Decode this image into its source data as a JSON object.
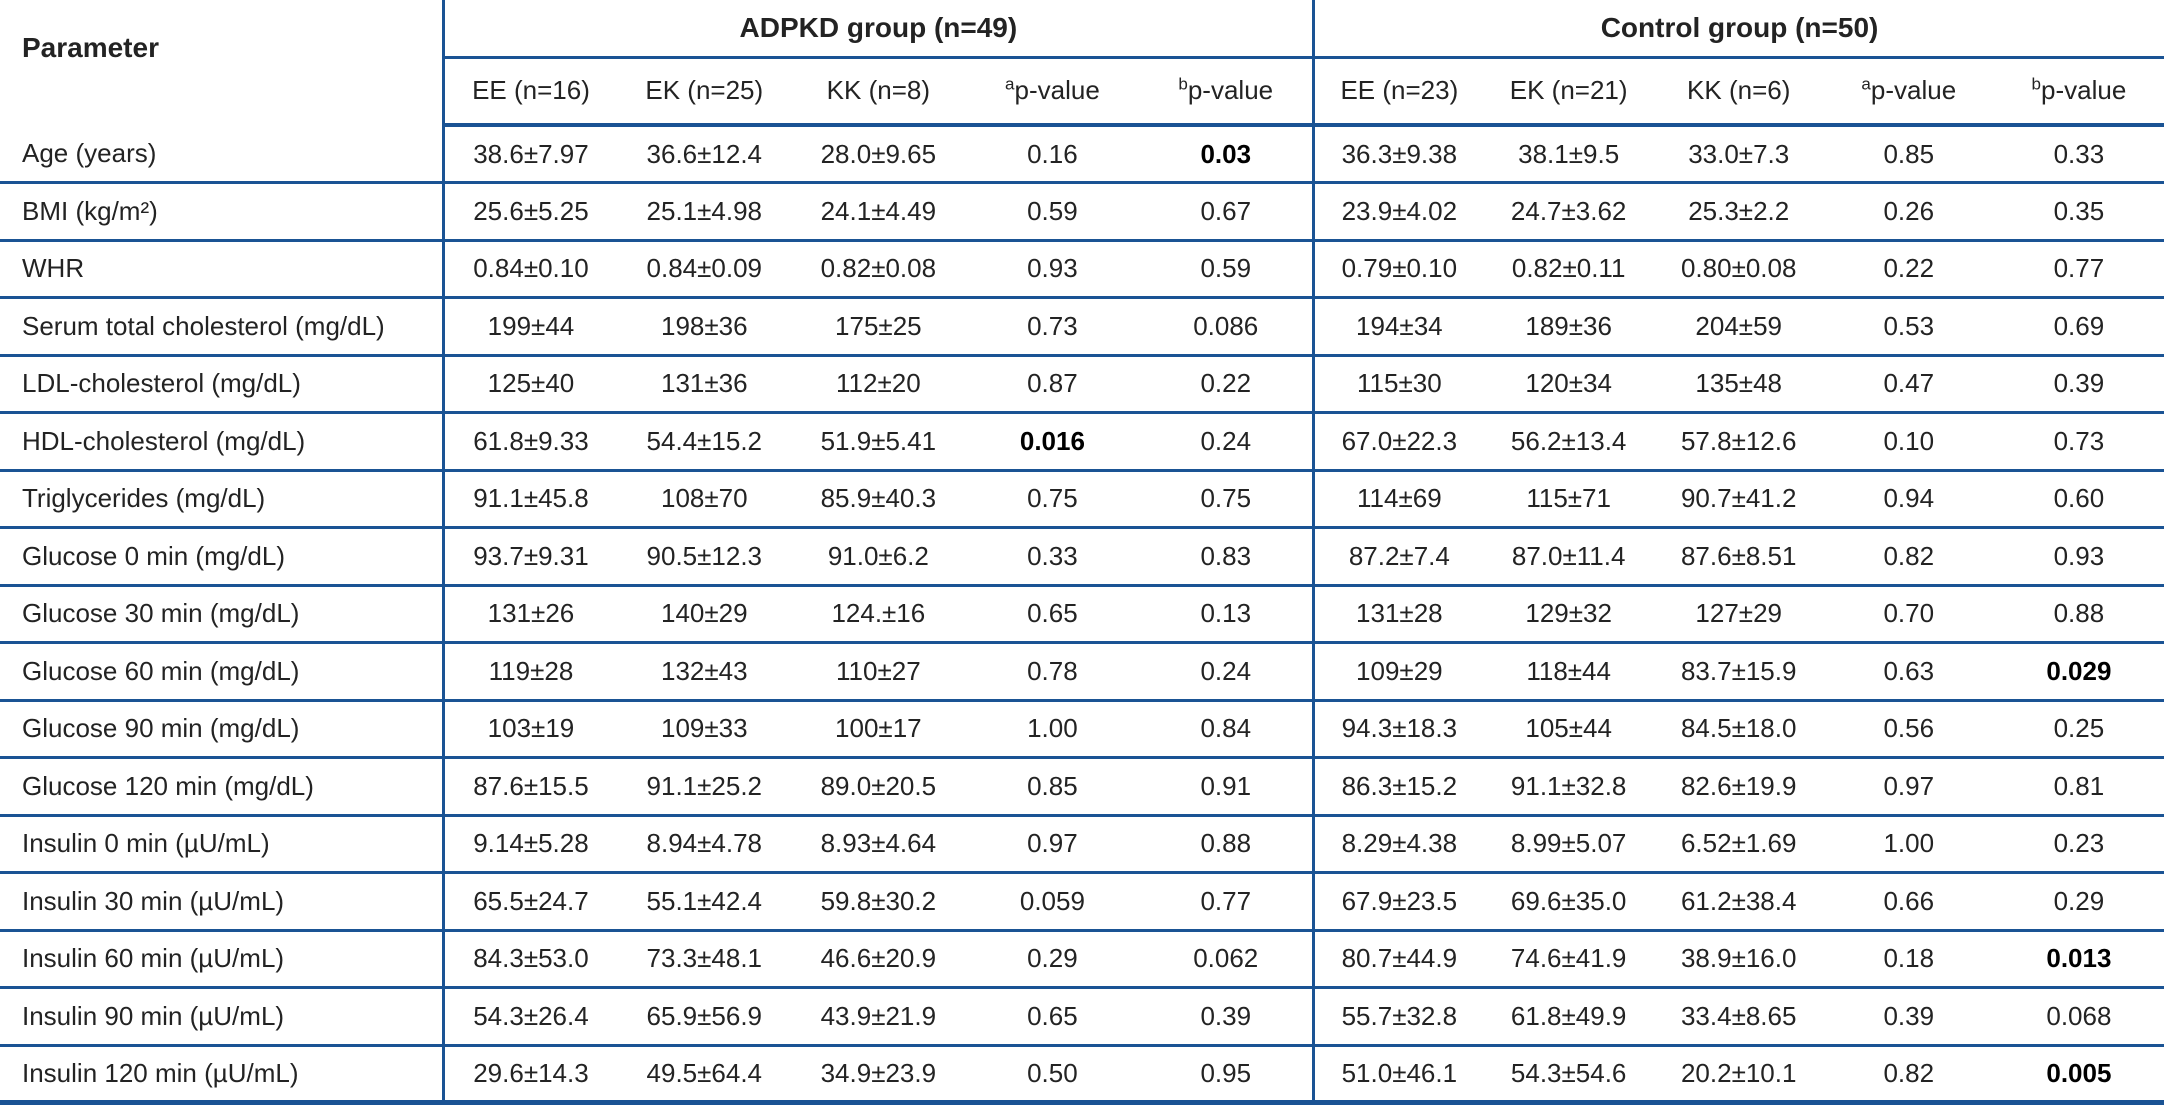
{
  "table": {
    "parameter_header": "Parameter",
    "groups": [
      {
        "title": "ADPKD group (n=49)",
        "subcols": [
          "EE (n=16)",
          "EK (n=25)",
          "KK (n=8)"
        ]
      },
      {
        "title": "Control group (n=50)",
        "subcols": [
          "EE (n=23)",
          "EK (n=21)",
          "KK (n=6)"
        ]
      }
    ],
    "pvalue_a": {
      "sup": "a",
      "label": "p-value"
    },
    "pvalue_b": {
      "sup": "b",
      "label": "p-value"
    },
    "colors": {
      "rule_blue": "#1a5394",
      "text": "#232323"
    },
    "rows": [
      {
        "param": "Age (years)",
        "values": [
          "38.6±7.97",
          "36.6±12.4",
          "28.0±9.65",
          "0.16",
          "0.03",
          "36.3±9.38",
          "38.1±9.5",
          "33.0±7.3",
          "0.85",
          "0.33"
        ],
        "bold": [
          4
        ]
      },
      {
        "param": "BMI (kg/m²)",
        "values": [
          "25.6±5.25",
          "25.1±4.98",
          "24.1±4.49",
          "0.59",
          "0.67",
          "23.9±4.02",
          "24.7±3.62",
          "25.3±2.2",
          "0.26",
          "0.35"
        ],
        "bold": []
      },
      {
        "param": "WHR",
        "values": [
          "0.84±0.10",
          "0.84±0.09",
          "0.82±0.08",
          "0.93",
          "0.59",
          "0.79±0.10",
          "0.82±0.11",
          "0.80±0.08",
          "0.22",
          "0.77"
        ],
        "bold": []
      },
      {
        "param": "Serum total cholesterol (mg/dL)",
        "values": [
          "199±44",
          "198±36",
          "175±25",
          "0.73",
          "0.086",
          "194±34",
          "189±36",
          "204±59",
          "0.53",
          "0.69"
        ],
        "bold": []
      },
      {
        "param": "LDL-cholesterol (mg/dL)",
        "values": [
          "125±40",
          "131±36",
          "112±20",
          "0.87",
          "0.22",
          "115±30",
          "120±34",
          "135±48",
          "0.47",
          "0.39"
        ],
        "bold": []
      },
      {
        "param": "HDL-cholesterol (mg/dL)",
        "values": [
          "61.8±9.33",
          "54.4±15.2",
          "51.9±5.41",
          "0.016",
          "0.24",
          "67.0±22.3",
          "56.2±13.4",
          "57.8±12.6",
          "0.10",
          "0.73"
        ],
        "bold": [
          3
        ]
      },
      {
        "param": "Triglycerides (mg/dL)",
        "values": [
          "91.1±45.8",
          "108±70",
          "85.9±40.3",
          "0.75",
          "0.75",
          "114±69",
          "115±71",
          "90.7±41.2",
          "0.94",
          "0.60"
        ],
        "bold": []
      },
      {
        "param": "Glucose 0 min (mg/dL)",
        "values": [
          "93.7±9.31",
          "90.5±12.3",
          "91.0±6.2",
          "0.33",
          "0.83",
          "87.2±7.4",
          "87.0±11.4",
          "87.6±8.51",
          "0.82",
          "0.93"
        ],
        "bold": []
      },
      {
        "param": "Glucose 30 min (mg/dL)",
        "values": [
          "131±26",
          "140±29",
          "124.±16",
          "0.65",
          "0.13",
          "131±28",
          "129±32",
          "127±29",
          "0.70",
          "0.88"
        ],
        "bold": []
      },
      {
        "param": "Glucose 60 min (mg/dL)",
        "values": [
          "119±28",
          "132±43",
          "110±27",
          "0.78",
          "0.24",
          "109±29",
          "118±44",
          "83.7±15.9",
          "0.63",
          "0.029"
        ],
        "bold": [
          9
        ]
      },
      {
        "param": "Glucose 90 min (mg/dL)",
        "values": [
          "103±19",
          "109±33",
          "100±17",
          "1.00",
          "0.84",
          "94.3±18.3",
          "105±44",
          "84.5±18.0",
          "0.56",
          "0.25"
        ],
        "bold": []
      },
      {
        "param": "Glucose 120 min (mg/dL)",
        "values": [
          "87.6±15.5",
          "91.1±25.2",
          "89.0±20.5",
          "0.85",
          "0.91",
          "86.3±15.2",
          "91.1±32.8",
          "82.6±19.9",
          "0.97",
          "0.81"
        ],
        "bold": []
      },
      {
        "param": "Insulin 0 min (µU/mL)",
        "values": [
          "9.14±5.28",
          "8.94±4.78",
          "8.93±4.64",
          "0.97",
          "0.88",
          "8.29±4.38",
          "8.99±5.07",
          "6.52±1.69",
          "1.00",
          "0.23"
        ],
        "bold": []
      },
      {
        "param": "Insulin 30 min (µU/mL)",
        "values": [
          "65.5±24.7",
          "55.1±42.4",
          "59.8±30.2",
          "0.059",
          "0.77",
          "67.9±23.5",
          "69.6±35.0",
          "61.2±38.4",
          "0.66",
          "0.29"
        ],
        "bold": []
      },
      {
        "param": "Insulin 60 min (µU/mL)",
        "values": [
          "84.3±53.0",
          "73.3±48.1",
          "46.6±20.9",
          "0.29",
          "0.062",
          "80.7±44.9",
          "74.6±41.9",
          "38.9±16.0",
          "0.18",
          "0.013"
        ],
        "bold": [
          9
        ]
      },
      {
        "param": "Insulin 90 min (µU/mL)",
        "values": [
          "54.3±26.4",
          "65.9±56.9",
          "43.9±21.9",
          "0.65",
          "0.39",
          "55.7±32.8",
          "61.8±49.9",
          "33.4±8.65",
          "0.39",
          "0.068"
        ],
        "bold": []
      },
      {
        "param": "Insulin 120 min (µU/mL)",
        "values": [
          "29.6±14.3",
          "49.5±64.4",
          "34.9±23.9",
          "0.50",
          "0.95",
          "51.0±46.1",
          "54.3±54.6",
          "20.2±10.1",
          "0.82",
          "0.005"
        ],
        "bold": [
          9
        ]
      }
    ]
  }
}
